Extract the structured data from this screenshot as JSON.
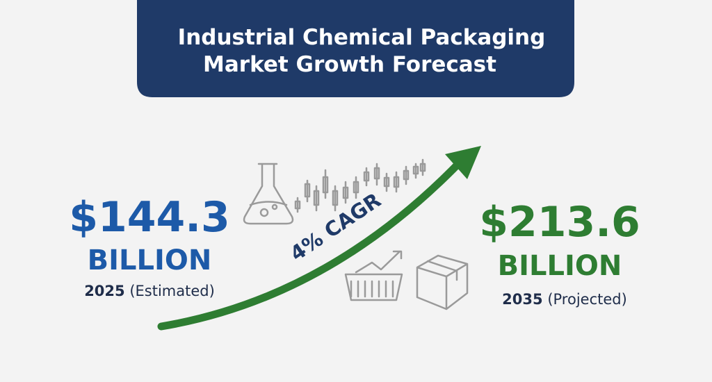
{
  "header": {
    "title_lines": [
      "Industrial Chemical Packaging",
      "Market Growth Forecast"
    ]
  },
  "start": {
    "amount": "$144.3",
    "unit": "BILLION",
    "year": "2025",
    "note": "(Estimated)"
  },
  "end": {
    "amount": "$213.6",
    "unit": "BILLION",
    "year": "2035",
    "note": "(Projected)"
  },
  "growth": {
    "label": "4% CAGR"
  }
}
